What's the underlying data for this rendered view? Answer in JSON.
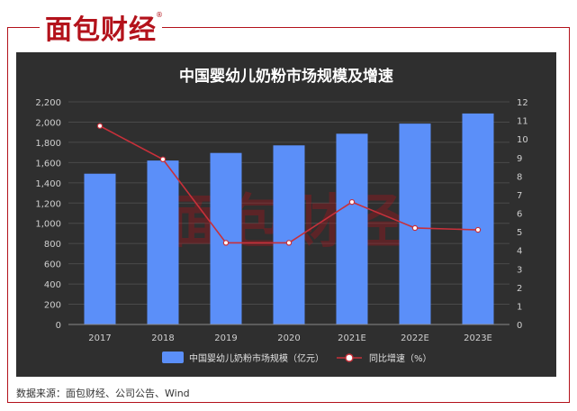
{
  "brand": {
    "logo_text": "面包财经",
    "registered_mark": "®",
    "watermark_text": "面包财经",
    "accent_color": "#b3121b"
  },
  "source_text": "数据来源：面包财经、公司公告、Wind",
  "chart_data": {
    "type": "bar",
    "title": "中国婴幼儿奶粉市场规模及增速",
    "categories": [
      "2017",
      "2018",
      "2019",
      "2020",
      "2021E",
      "2022E",
      "2023E"
    ],
    "series": [
      {
        "name": "中国婴幼儿奶粉市场规模（亿元）",
        "type": "bar",
        "axis": "left",
        "color": "#5b8ff9",
        "values": [
          1490,
          1620,
          1695,
          1770,
          1885,
          1985,
          2085
        ]
      },
      {
        "name": "同比增速（%）",
        "type": "line",
        "axis": "right",
        "color": "#c8303a",
        "values": [
          10.7,
          8.9,
          4.4,
          4.4,
          6.6,
          5.2,
          5.1
        ]
      }
    ],
    "y_left": {
      "min": 0,
      "max": 2200,
      "ticks": [
        "0",
        "200",
        "400",
        "600",
        "800",
        "1,000",
        "1,200",
        "1,400",
        "1,600",
        "1,800",
        "2,000",
        "2,200"
      ]
    },
    "y_right": {
      "min": 0,
      "max": 12,
      "ticks": [
        "0",
        "1",
        "2",
        "3",
        "4",
        "5",
        "6",
        "7",
        "8",
        "9",
        "10",
        "11",
        "12"
      ]
    },
    "grid": true,
    "legend_position": "bottom"
  }
}
